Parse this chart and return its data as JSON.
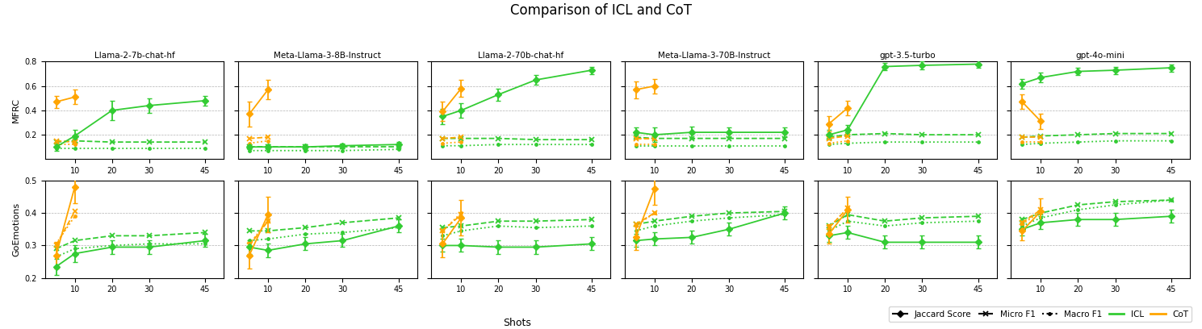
{
  "title": "Comparison of ICL and CoT",
  "xlabel": "Shots",
  "row_labels": [
    "MFRC",
    "GoEmotions"
  ],
  "col_labels": [
    "Llama-2-7b-chat-hf",
    "Meta-Llama-3-8B-Instruct",
    "Llama-2-70b-chat-hf",
    "Meta-Llama-3-70B-Instruct",
    "gpt-3.5-turbo",
    "gpt-4o-mini"
  ],
  "shots": [
    5,
    10,
    20,
    30,
    45
  ],
  "color_icl": "#33cc33",
  "color_cot": "#FFA500",
  "ylim_mfrc": [
    0.0,
    0.8
  ],
  "ylim_goemo": [
    0.2,
    0.5
  ],
  "yticks_mfrc": [
    0.2,
    0.4,
    0.6,
    0.8
  ],
  "yticks_goemo": [
    0.2,
    0.3,
    0.4,
    0.5
  ],
  "mfrc": {
    "icl_jaccard": [
      [
        0.1,
        0.19,
        0.4,
        0.44,
        0.48
      ],
      [
        0.1,
        0.1,
        0.1,
        0.11,
        0.12
      ],
      [
        0.35,
        0.4,
        0.53,
        0.65,
        0.73
      ],
      [
        0.22,
        0.2,
        0.22,
        0.22,
        0.22
      ],
      [
        0.2,
        0.24,
        0.76,
        0.77,
        0.78
      ],
      [
        0.62,
        0.67,
        0.72,
        0.73,
        0.75
      ]
    ],
    "icl_micro": [
      [
        0.14,
        0.15,
        0.14,
        0.14,
        0.14
      ],
      [
        0.1,
        0.1,
        0.1,
        0.1,
        0.1
      ],
      [
        0.17,
        0.17,
        0.17,
        0.16,
        0.16
      ],
      [
        0.18,
        0.17,
        0.17,
        0.17,
        0.17
      ],
      [
        0.18,
        0.2,
        0.21,
        0.2,
        0.2
      ],
      [
        0.18,
        0.19,
        0.2,
        0.21,
        0.21
      ]
    ],
    "icl_macro": [
      [
        0.09,
        0.09,
        0.09,
        0.09,
        0.09
      ],
      [
        0.07,
        0.07,
        0.07,
        0.07,
        0.08
      ],
      [
        0.11,
        0.11,
        0.12,
        0.12,
        0.12
      ],
      [
        0.11,
        0.11,
        0.11,
        0.11,
        0.11
      ],
      [
        0.12,
        0.13,
        0.14,
        0.14,
        0.14
      ],
      [
        0.12,
        0.13,
        0.14,
        0.15,
        0.15
      ]
    ],
    "cot_jaccard": [
      [
        0.47,
        0.51,
        null,
        null,
        null
      ],
      [
        0.37,
        0.57,
        null,
        null,
        null
      ],
      [
        0.39,
        0.58,
        null,
        null,
        null
      ],
      [
        0.57,
        0.6,
        null,
        null,
        null
      ],
      [
        0.29,
        0.42,
        null,
        null,
        null
      ],
      [
        0.47,
        0.31,
        null,
        null,
        null
      ]
    ],
    "cot_micro": [
      [
        0.15,
        0.14,
        null,
        null,
        null
      ],
      [
        0.17,
        0.18,
        null,
        null,
        null
      ],
      [
        0.17,
        0.18,
        null,
        null,
        null
      ],
      [
        0.17,
        0.17,
        null,
        null,
        null
      ],
      [
        0.17,
        0.19,
        null,
        null,
        null
      ],
      [
        0.18,
        0.18,
        null,
        null,
        null
      ]
    ],
    "cot_macro": [
      [
        0.12,
        0.12,
        null,
        null,
        null
      ],
      [
        0.13,
        0.15,
        null,
        null,
        null
      ],
      [
        0.13,
        0.14,
        null,
        null,
        null
      ],
      [
        0.12,
        0.12,
        null,
        null,
        null
      ],
      [
        0.13,
        0.15,
        null,
        null,
        null
      ],
      [
        0.14,
        0.14,
        null,
        null,
        null
      ]
    ],
    "icl_jaccard_err": [
      [
        0.03,
        0.05,
        0.08,
        0.06,
        0.04
      ],
      [
        0.02,
        0.02,
        0.02,
        0.02,
        0.02
      ],
      [
        0.06,
        0.06,
        0.05,
        0.04,
        0.03
      ],
      [
        0.04,
        0.06,
        0.05,
        0.04,
        0.04
      ],
      [
        0.04,
        0.04,
        0.03,
        0.03,
        0.03
      ],
      [
        0.04,
        0.04,
        0.03,
        0.03,
        0.03
      ]
    ],
    "cot_jaccard_err": [
      [
        0.05,
        0.06,
        null,
        null,
        null
      ],
      [
        0.1,
        0.08,
        null,
        null,
        null
      ],
      [
        0.08,
        0.07,
        null,
        null,
        null
      ],
      [
        0.07,
        0.06,
        null,
        null,
        null
      ],
      [
        0.06,
        0.06,
        null,
        null,
        null
      ],
      [
        0.06,
        0.06,
        null,
        null,
        null
      ]
    ]
  },
  "goemo": {
    "icl_jaccard": [
      [
        0.235,
        0.275,
        0.295,
        0.295,
        0.315
      ],
      [
        0.295,
        0.285,
        0.305,
        0.315,
        0.36
      ],
      [
        0.3,
        0.3,
        0.295,
        0.295,
        0.305
      ],
      [
        0.315,
        0.32,
        0.325,
        0.35,
        0.4
      ],
      [
        0.33,
        0.34,
        0.31,
        0.31,
        0.31
      ],
      [
        0.35,
        0.37,
        0.38,
        0.38,
        0.39
      ]
    ],
    "icl_micro": [
      [
        0.29,
        0.315,
        0.33,
        0.33,
        0.34
      ],
      [
        0.345,
        0.345,
        0.355,
        0.37,
        0.385
      ],
      [
        0.355,
        0.36,
        0.375,
        0.375,
        0.38
      ],
      [
        0.365,
        0.375,
        0.39,
        0.4,
        0.405
      ],
      [
        0.36,
        0.395,
        0.375,
        0.385,
        0.39
      ],
      [
        0.38,
        0.4,
        0.425,
        0.435,
        0.44
      ]
    ],
    "icl_macro": [
      [
        0.265,
        0.29,
        0.3,
        0.305,
        0.305
      ],
      [
        0.315,
        0.32,
        0.335,
        0.34,
        0.355
      ],
      [
        0.33,
        0.345,
        0.36,
        0.355,
        0.36
      ],
      [
        0.345,
        0.36,
        0.375,
        0.385,
        0.395
      ],
      [
        0.345,
        0.375,
        0.36,
        0.37,
        0.375
      ],
      [
        0.36,
        0.385,
        0.41,
        0.425,
        0.44
      ]
    ],
    "cot_jaccard": [
      [
        0.27,
        0.48,
        null,
        null,
        null
      ],
      [
        0.27,
        0.395,
        null,
        null,
        null
      ],
      [
        0.305,
        0.385,
        null,
        null,
        null
      ],
      [
        0.325,
        0.475,
        null,
        null,
        null
      ],
      [
        0.335,
        0.41,
        null,
        null,
        null
      ],
      [
        0.345,
        0.405,
        null,
        null,
        null
      ]
    ],
    "cot_micro": [
      [
        0.3,
        0.405,
        null,
        null,
        null
      ],
      [
        0.3,
        0.375,
        null,
        null,
        null
      ],
      [
        0.345,
        0.395,
        null,
        null,
        null
      ],
      [
        0.365,
        0.4,
        null,
        null,
        null
      ],
      [
        0.355,
        0.415,
        null,
        null,
        null
      ],
      [
        0.37,
        0.41,
        null,
        null,
        null
      ]
    ],
    "cot_macro": [
      [
        0.305,
        0.39,
        null,
        null,
        null
      ],
      [
        0.305,
        0.375,
        null,
        null,
        null
      ],
      [
        0.345,
        0.4,
        null,
        null,
        null
      ],
      [
        0.36,
        0.4,
        null,
        null,
        null
      ],
      [
        0.355,
        0.415,
        null,
        null,
        null
      ],
      [
        0.365,
        0.405,
        null,
        null,
        null
      ]
    ],
    "icl_jaccard_err": [
      [
        0.025,
        0.025,
        0.02,
        0.02,
        0.02
      ],
      [
        0.02,
        0.02,
        0.02,
        0.02,
        0.02
      ],
      [
        0.02,
        0.02,
        0.02,
        0.02,
        0.02
      ],
      [
        0.02,
        0.02,
        0.02,
        0.02,
        0.02
      ],
      [
        0.02,
        0.02,
        0.02,
        0.02,
        0.02
      ],
      [
        0.02,
        0.02,
        0.02,
        0.02,
        0.02
      ]
    ],
    "cot_jaccard_err": [
      [
        0.04,
        0.05,
        null,
        null,
        null
      ],
      [
        0.04,
        0.055,
        null,
        null,
        null
      ],
      [
        0.04,
        0.055,
        null,
        null,
        null
      ],
      [
        0.04,
        0.05,
        null,
        null,
        null
      ],
      [
        0.03,
        0.04,
        null,
        null,
        null
      ],
      [
        0.03,
        0.04,
        null,
        null,
        null
      ]
    ]
  }
}
